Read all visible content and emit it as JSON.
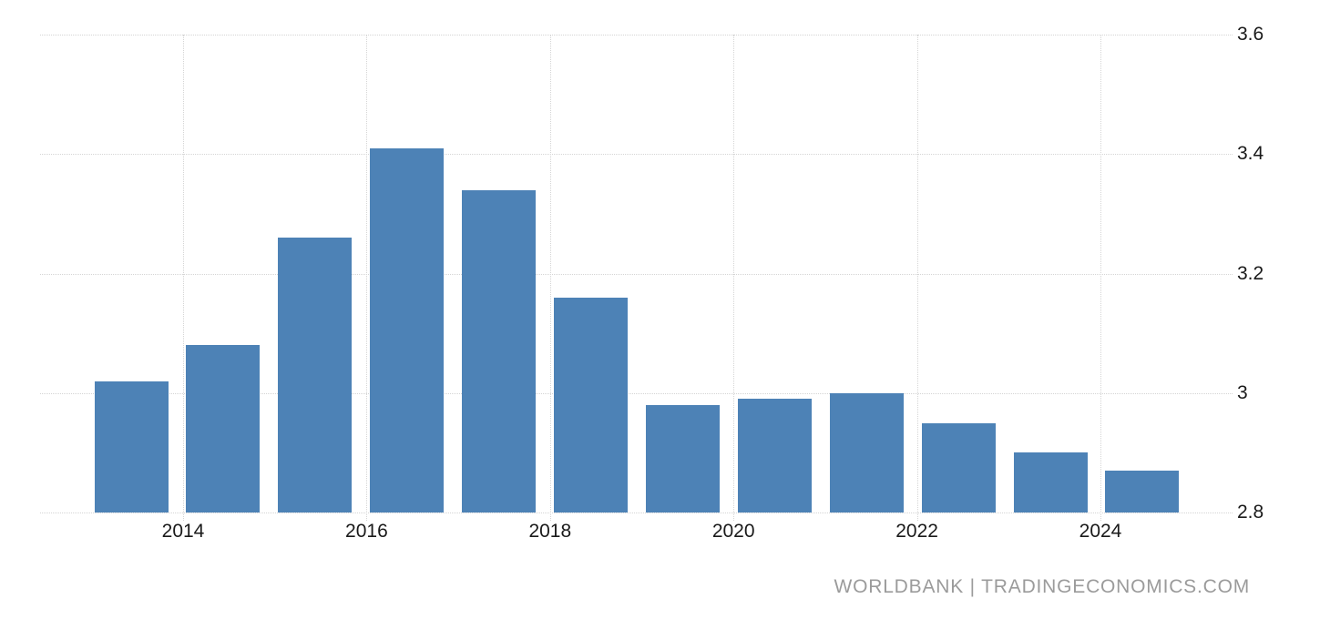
{
  "chart_data": {
    "type": "bar",
    "title": "",
    "xlabel": "",
    "ylabel": "",
    "categories": [
      2013,
      2014,
      2015,
      2016,
      2017,
      2018,
      2019,
      2020,
      2021,
      2022,
      2023,
      2024
    ],
    "values": [
      3.02,
      3.08,
      3.26,
      3.41,
      3.34,
      3.16,
      2.98,
      2.99,
      3.0,
      2.95,
      2.9,
      2.87
    ],
    "ylim": [
      2.8,
      3.6
    ],
    "y_ticks": [
      {
        "label": "3.6",
        "value": 3.6
      },
      {
        "label": "3.4",
        "value": 3.4
      },
      {
        "label": "3.2",
        "value": 3.2
      },
      {
        "label": "3",
        "value": 3.0
      },
      {
        "label": "2.8",
        "value": 2.8
      }
    ],
    "x_ticks": [
      {
        "label": "2014",
        "year": 2014
      },
      {
        "label": "2016",
        "year": 2016
      },
      {
        "label": "2018",
        "year": 2018
      },
      {
        "label": "2020",
        "year": 2020
      },
      {
        "label": "2022",
        "year": 2022
      },
      {
        "label": "2024",
        "year": 2024
      }
    ],
    "grid": "dotted, horizontal at y ticks and vertical at x ticks",
    "legend": "none",
    "y_axis_side": "right"
  },
  "colors": {
    "bar": "#4d82b6",
    "grid": "#d5d5d5",
    "axis_text": "#1a1a1a",
    "watermark_text": "#9b9b9b",
    "background": "#ffffff"
  },
  "watermark": {
    "text": "WORLDBANK | TRADINGECONOMICS.COM"
  }
}
